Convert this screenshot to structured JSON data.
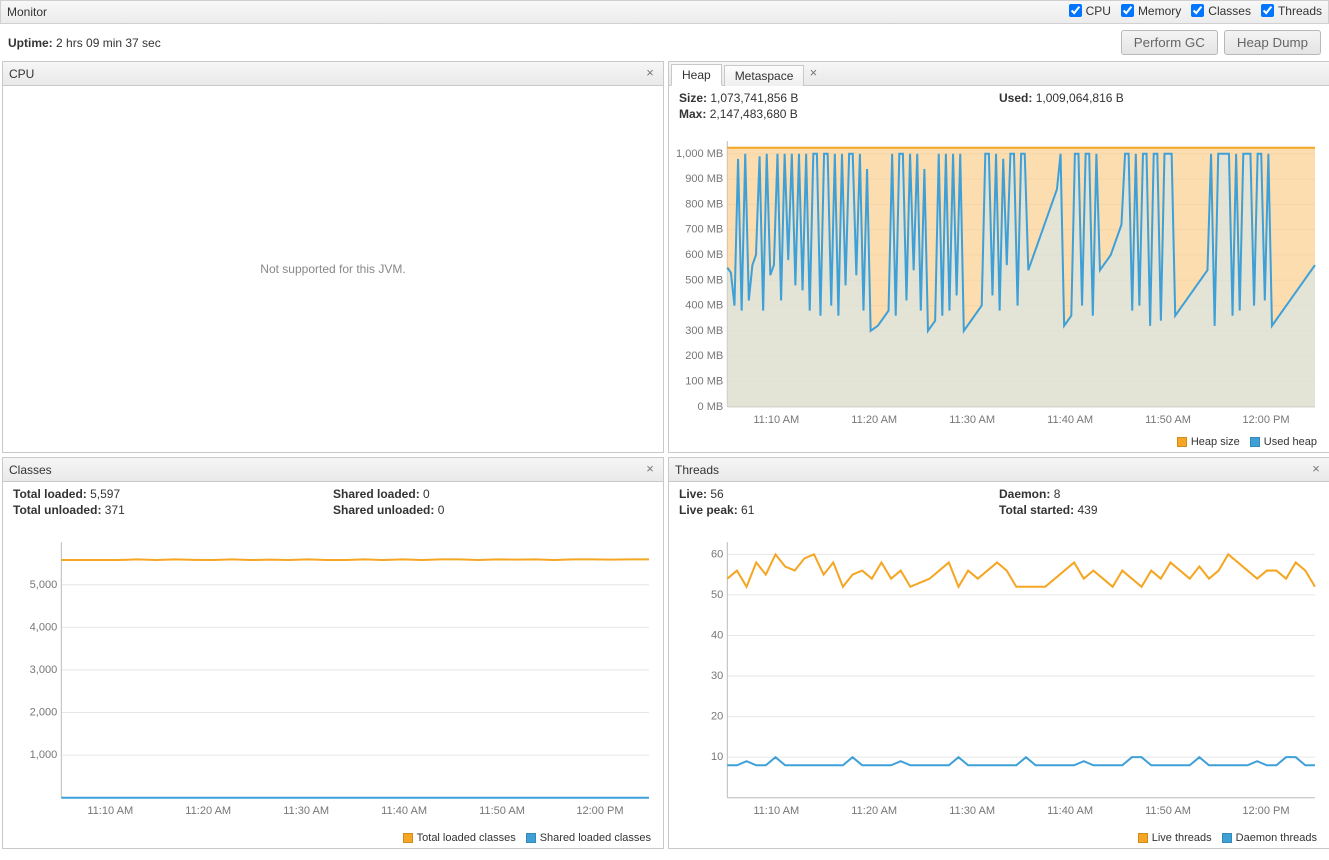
{
  "colors": {
    "orange": "#f5a623",
    "orange_fill": "#f9cf8e",
    "blue": "#3fa0d8",
    "blue_fill": "#cfe9f5",
    "grid": "#e6e6e6",
    "axis_text": "#777777"
  },
  "topbar": {
    "title": "Monitor",
    "checks": [
      {
        "label": "CPU",
        "checked": true
      },
      {
        "label": "Memory",
        "checked": true
      },
      {
        "label": "Classes",
        "checked": true
      },
      {
        "label": "Threads",
        "checked": true
      }
    ]
  },
  "uptime": {
    "label": "Uptime:",
    "value": "2 hrs 09 min 37 sec"
  },
  "buttons": {
    "perform_gc": "Perform GC",
    "heap_dump": "Heap Dump"
  },
  "x_ticks": [
    "11:10 AM",
    "11:20 AM",
    "11:30 AM",
    "11:40 AM",
    "11:50 AM",
    "12:00 PM"
  ],
  "cpu": {
    "title": "CPU",
    "message": "Not supported for this JVM."
  },
  "heap": {
    "tabs": [
      "Heap",
      "Metaspace"
    ],
    "active_tab": 0,
    "stats": {
      "size": {
        "k": "Size:",
        "v": "1,073,741,856 B"
      },
      "max": {
        "k": "Max:",
        "v": "2,147,483,680 B"
      },
      "used": {
        "k": "Used:",
        "v": "1,009,064,816 B"
      }
    },
    "y_ticks": [
      "0 MB",
      "100 MB",
      "200 MB",
      "300 MB",
      "400 MB",
      "500 MB",
      "600 MB",
      "700 MB",
      "800 MB",
      "900 MB",
      "1,000 MB"
    ],
    "y_max": 1050,
    "heap_size_series": 1024,
    "used_series_mb": [
      550,
      530,
      400,
      980,
      380,
      1000,
      420,
      560,
      600,
      990,
      380,
      1000,
      520,
      560,
      1000,
      420,
      1000,
      580,
      1000,
      480,
      1000,
      460,
      1000,
      380,
      1000,
      1000,
      360,
      1000,
      1000,
      400,
      1000,
      360,
      1000,
      480,
      1000,
      1000,
      520,
      1000,
      380,
      940,
      300,
      310,
      320,
      340,
      360,
      380,
      1000,
      360,
      1000,
      1000,
      420,
      1000,
      540,
      1000,
      380,
      940,
      300,
      320,
      340,
      1000,
      360,
      1000,
      380,
      1000,
      440,
      1000,
      300,
      320,
      340,
      360,
      380,
      400,
      1000,
      1000,
      440,
      1000,
      380,
      980,
      560,
      1000,
      1000,
      400,
      1000,
      1000,
      540,
      580,
      620,
      660,
      700,
      740,
      780,
      820,
      860,
      1000,
      320,
      340,
      360,
      1000,
      1000,
      400,
      1000,
      1000,
      360,
      1000,
      540,
      560,
      580,
      600,
      640,
      680,
      720,
      1000,
      1000,
      380,
      1000,
      400,
      1000,
      1000,
      320,
      1000,
      1000,
      340,
      1000,
      1000,
      1000,
      360,
      380,
      400,
      420,
      440,
      460,
      480,
      500,
      520,
      540,
      1000,
      320,
      1000,
      1000,
      1000,
      1000,
      360,
      1000,
      380,
      1000,
      1000,
      1000,
      400,
      1000,
      1000,
      420,
      1000,
      320,
      340,
      360,
      380,
      400,
      420,
      440,
      460,
      480,
      500,
      520,
      540,
      560
    ],
    "legend": [
      {
        "color": "#f5a623",
        "label": "Heap size"
      },
      {
        "color": "#3fa0d8",
        "label": "Used heap"
      }
    ]
  },
  "classes": {
    "title": "Classes",
    "stats": {
      "total_loaded": {
        "k": "Total loaded:",
        "v": "5,597"
      },
      "total_unloaded": {
        "k": "Total unloaded:",
        "v": "371"
      },
      "shared_loaded": {
        "k": "Shared loaded:",
        "v": "0"
      },
      "shared_unloaded": {
        "k": "Shared unloaded:",
        "v": "0"
      }
    },
    "y_ticks": [
      "1,000",
      "2,000",
      "3,000",
      "4,000",
      "5,000"
    ],
    "y_max": 6000,
    "total_loaded_series": [
      5580,
      5582,
      5582,
      5580,
      5595,
      5580,
      5597,
      5584,
      5580,
      5597,
      5580,
      5590,
      5580,
      5597,
      5582,
      5580,
      5597,
      5580,
      5597,
      5580,
      5597,
      5597,
      5580,
      5597,
      5590,
      5597,
      5580,
      5597,
      5597,
      5590,
      5597,
      5597
    ],
    "shared_loaded_series_value": 0,
    "legend": [
      {
        "color": "#f5a623",
        "label": "Total loaded classes"
      },
      {
        "color": "#3fa0d8",
        "label": "Shared loaded classes"
      }
    ]
  },
  "threads": {
    "title": "Threads",
    "stats": {
      "live": {
        "k": "Live:",
        "v": "56"
      },
      "live_peak": {
        "k": "Live peak:",
        "v": "61"
      },
      "daemon": {
        "k": "Daemon:",
        "v": "8"
      },
      "started": {
        "k": "Total started:",
        "v": "439"
      }
    },
    "y_ticks": [
      "10",
      "20",
      "30",
      "40",
      "50",
      "60"
    ],
    "y_max": 63,
    "live_series": [
      54,
      56,
      52,
      58,
      55,
      60,
      57,
      56,
      59,
      60,
      55,
      58,
      52,
      55,
      56,
      54,
      58,
      54,
      56,
      52,
      53,
      54,
      56,
      58,
      52,
      56,
      54,
      56,
      58,
      56,
      52,
      52,
      52,
      52,
      54,
      56,
      58,
      54,
      56,
      54,
      52,
      56,
      54,
      52,
      56,
      54,
      58,
      56,
      54,
      57,
      54,
      56,
      60,
      58,
      56,
      54,
      56,
      56,
      54,
      58,
      56,
      52
    ],
    "daemon_series": [
      8,
      8,
      9,
      8,
      8,
      10,
      8,
      8,
      8,
      8,
      8,
      8,
      8,
      10,
      8,
      8,
      8,
      8,
      9,
      8,
      8,
      8,
      8,
      8,
      10,
      8,
      8,
      8,
      8,
      8,
      8,
      10,
      8,
      8,
      8,
      8,
      8,
      9,
      8,
      8,
      8,
      8,
      10,
      10,
      8,
      8,
      8,
      8,
      8,
      10,
      8,
      8,
      8,
      8,
      8,
      9,
      8,
      8,
      10,
      10,
      8,
      8
    ],
    "legend": [
      {
        "color": "#f5a623",
        "label": "Live threads"
      },
      {
        "color": "#3fa0d8",
        "label": "Daemon threads"
      }
    ]
  }
}
